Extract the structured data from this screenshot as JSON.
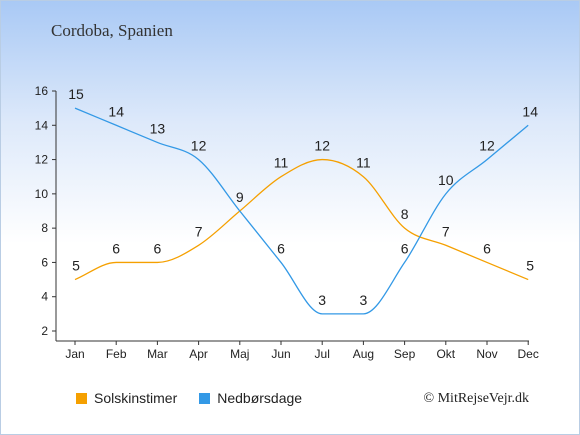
{
  "title": "Cordoba, Spanien",
  "credit": "© MitRejseVejr.dk",
  "chart_data": {
    "type": "line",
    "categories": [
      "Jan",
      "Feb",
      "Mar",
      "Apr",
      "Maj",
      "Jun",
      "Jul",
      "Aug",
      "Sep",
      "Okt",
      "Nov",
      "Dec"
    ],
    "yticks": [
      2,
      4,
      6,
      8,
      10,
      12,
      14,
      16
    ],
    "ylim": [
      2,
      16
    ],
    "grid": false,
    "legend_position": "bottom",
    "series": [
      {
        "name": "Solskinstimer",
        "color": "#f5a000",
        "values": [
          5,
          6,
          6,
          7,
          9,
          11,
          12,
          11,
          8,
          7,
          6,
          5
        ]
      },
      {
        "name": "Nedbørsdage",
        "color": "#3399e6",
        "values": [
          15,
          14,
          13,
          12,
          9,
          6,
          3,
          3,
          6,
          10,
          12,
          14
        ]
      }
    ]
  }
}
